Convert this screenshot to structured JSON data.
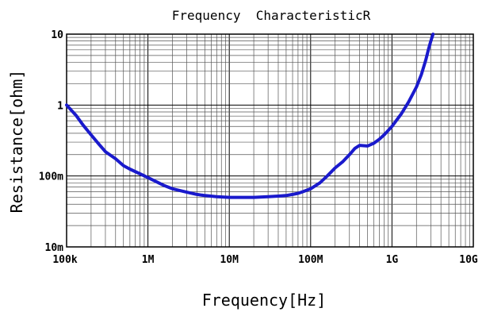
{
  "chart_data": {
    "type": "line",
    "title": "Frequency  CharacteristicR",
    "xlabel": "Frequency[Hz]",
    "ylabel": "Resistance[ohm]",
    "x_scale": "log",
    "y_scale": "log",
    "xlim": [
      100000,
      10000000000
    ],
    "ylim": [
      0.01,
      10
    ],
    "grid": true,
    "line_color": "#1a1acc",
    "x_ticks": [
      {
        "value": 100000,
        "label": "100k"
      },
      {
        "value": 1000000,
        "label": "1M"
      },
      {
        "value": 10000000,
        "label": "10M"
      },
      {
        "value": 100000000,
        "label": "100M"
      },
      {
        "value": 1000000000,
        "label": "1G"
      },
      {
        "value": 10000000000,
        "label": "10G"
      }
    ],
    "y_ticks": [
      {
        "value": 0.01,
        "label": "10m"
      },
      {
        "value": 0.1,
        "label": "100m"
      },
      {
        "value": 1,
        "label": "1"
      },
      {
        "value": 10,
        "label": "10"
      }
    ],
    "series": [
      {
        "x": [
          100000,
          130000,
          160000,
          200000,
          250000,
          300000,
          400000,
          500000,
          600000,
          800000,
          1000000,
          1300000,
          1600000,
          2000000,
          3000000,
          4000000,
          5000000,
          7000000,
          10000000,
          15000000,
          20000000,
          30000000,
          40000000,
          50000000,
          60000000,
          70000000,
          80000000,
          100000000,
          130000000,
          160000000,
          200000000,
          250000000,
          300000000,
          350000000,
          400000000,
          500000000,
          600000000,
          700000000,
          800000000,
          1000000000,
          1300000000,
          1600000000,
          2000000000,
          2300000000,
          2600000000,
          2800000000,
          3000000000,
          3200000000
        ],
        "y": [
          1.0,
          0.72,
          0.52,
          0.38,
          0.28,
          0.22,
          0.175,
          0.14,
          0.125,
          0.107,
          0.095,
          0.082,
          0.073,
          0.066,
          0.059,
          0.055,
          0.053,
          0.051,
          0.05,
          0.05,
          0.05,
          0.051,
          0.052,
          0.053,
          0.055,
          0.057,
          0.06,
          0.066,
          0.08,
          0.1,
          0.13,
          0.16,
          0.2,
          0.245,
          0.27,
          0.265,
          0.29,
          0.33,
          0.38,
          0.5,
          0.75,
          1.1,
          1.8,
          2.7,
          4.3,
          6.0,
          8.0,
          10.0
        ]
      }
    ]
  }
}
